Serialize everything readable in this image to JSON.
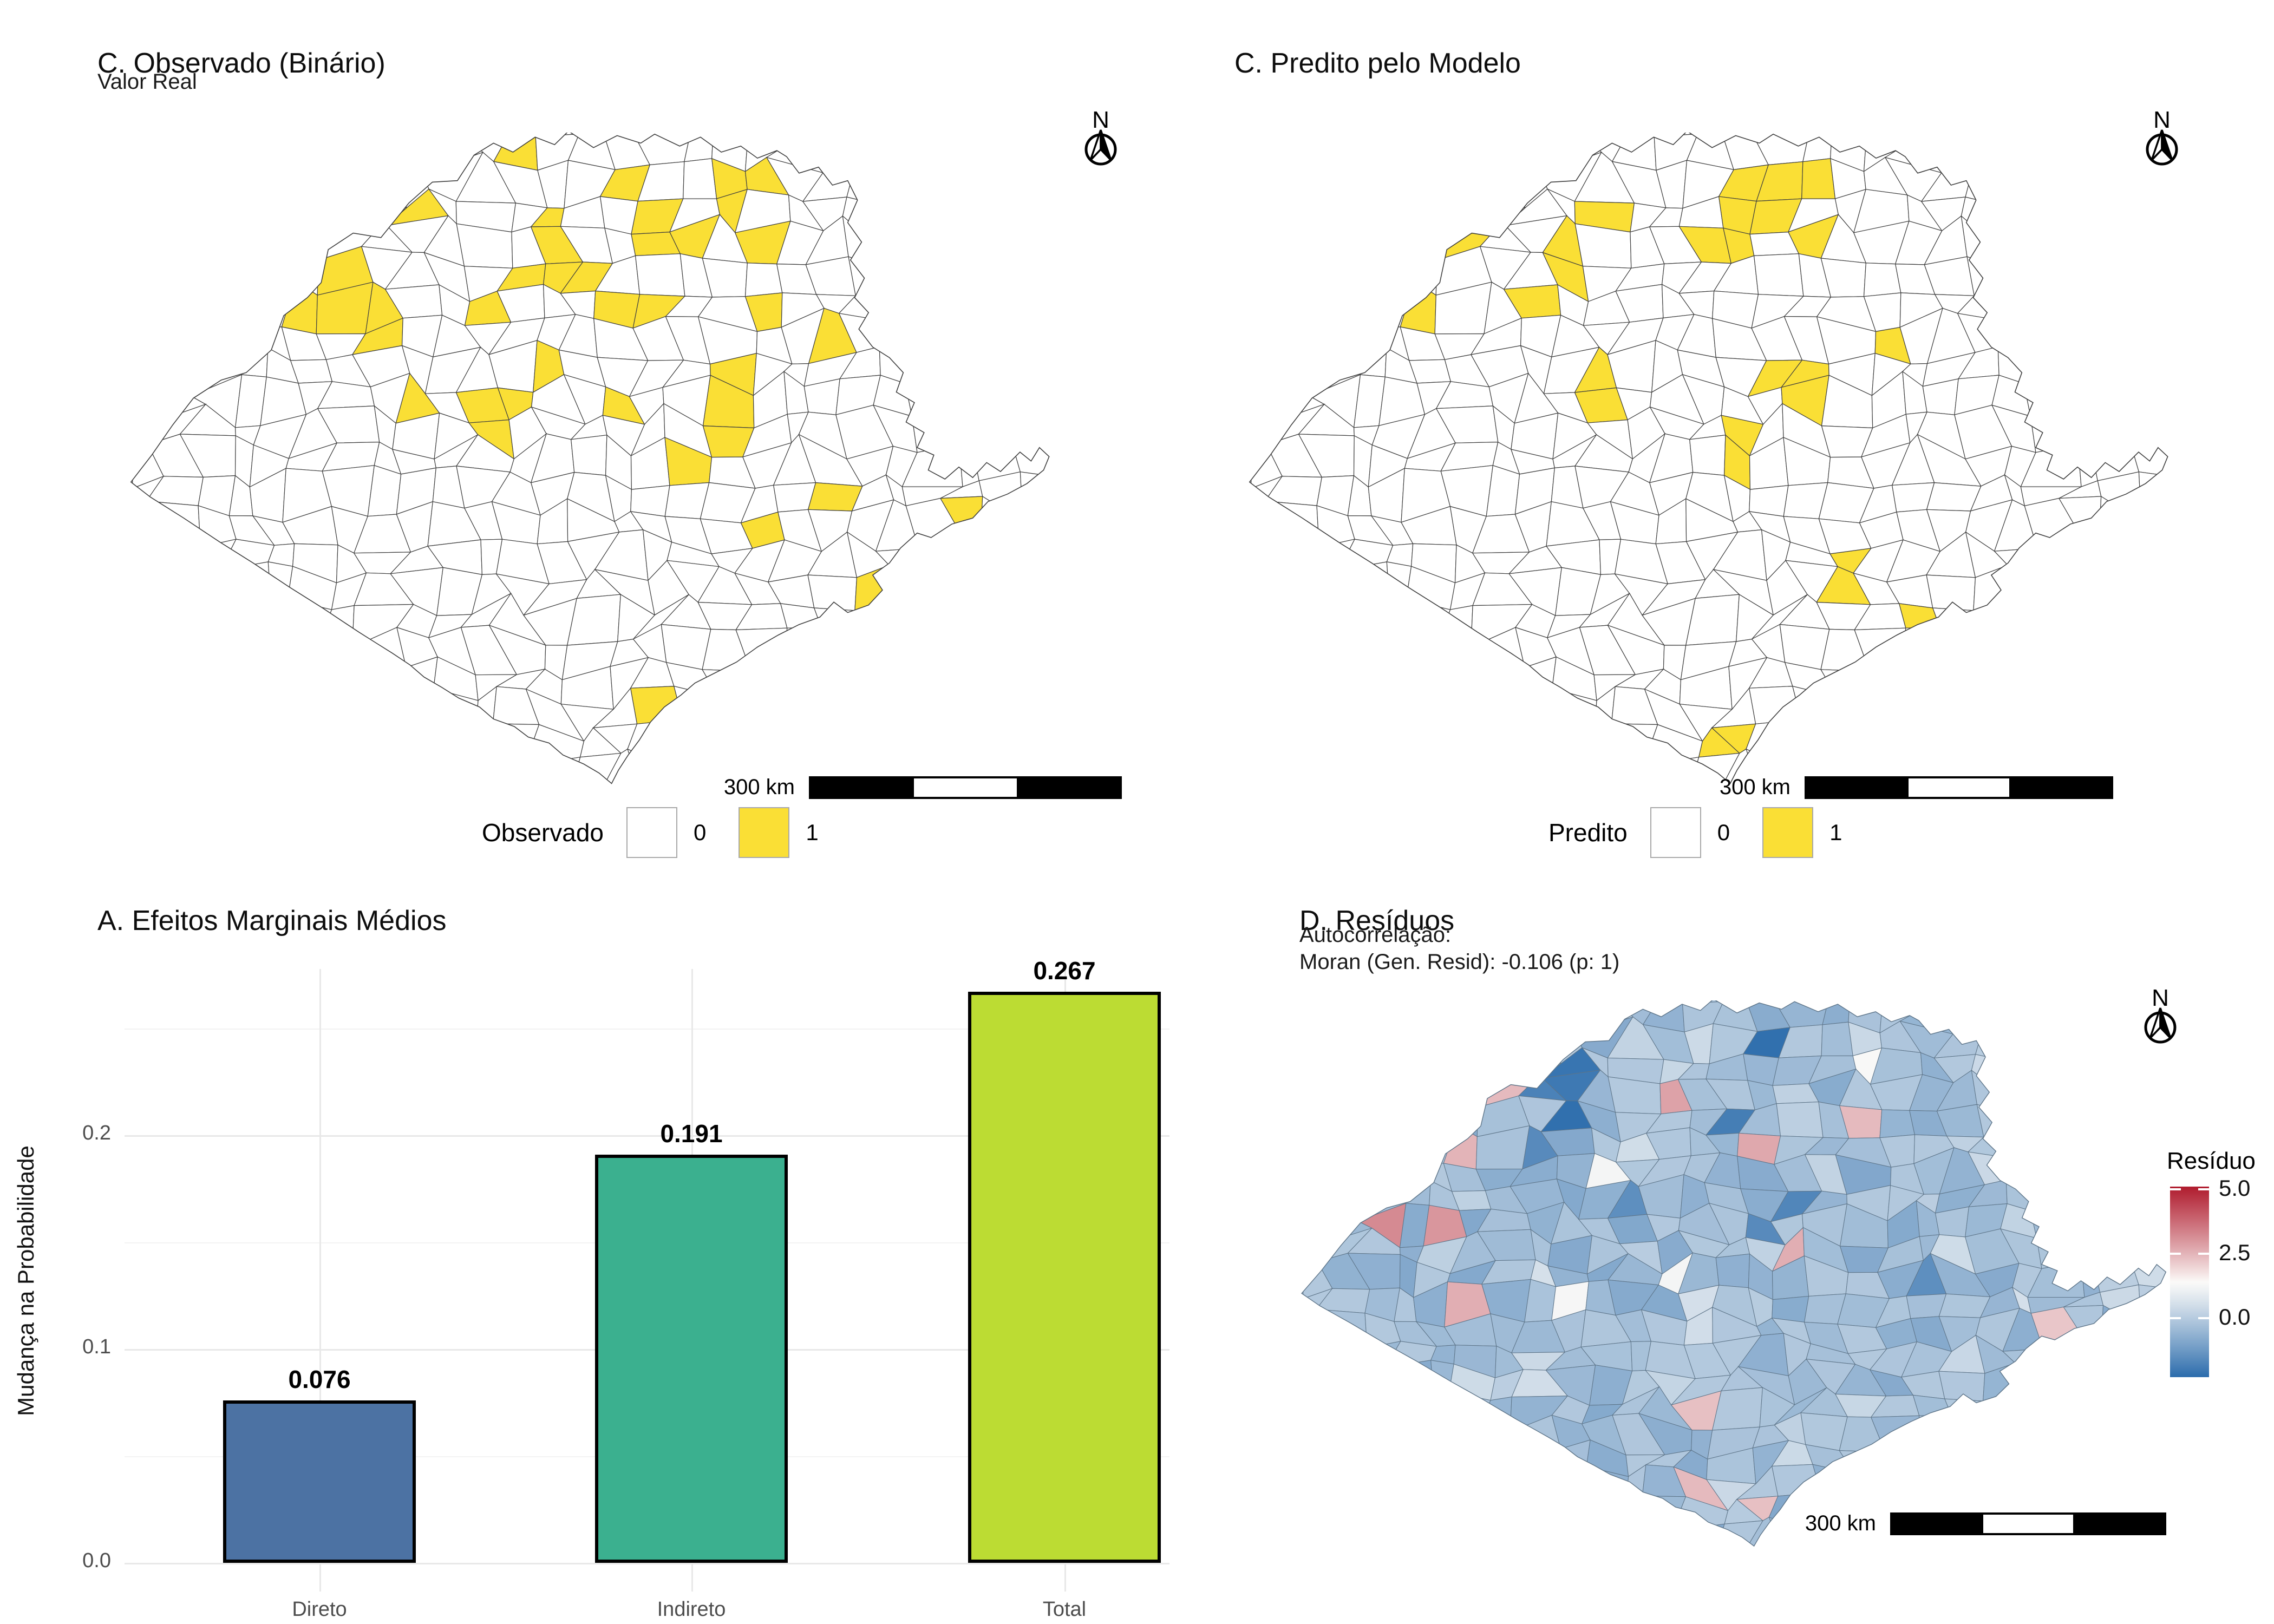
{
  "panels": {
    "observado": {
      "title": "C. Observado (Binário)",
      "subtitle": "Valor Real",
      "north_label": "N",
      "scale_text": "300 km",
      "legend_title": "Observado",
      "legend_items": [
        {
          "label": "0",
          "color": "#FFFFFF"
        },
        {
          "label": "1",
          "color": "#FADF35"
        }
      ],
      "map_type": "choropleth-binary",
      "region": "São Paulo state municipalities",
      "highlights": [
        [
          0.439,
          0.048
        ],
        [
          0.64,
          0.056
        ],
        [
          0.668,
          0.041
        ],
        [
          0.526,
          0.082
        ],
        [
          0.308,
          0.089
        ],
        [
          0.59,
          0.12
        ],
        [
          0.612,
          0.152
        ],
        [
          0.583,
          0.185
        ],
        [
          0.64,
          0.13
        ],
        [
          0.684,
          0.149
        ],
        [
          0.7,
          0.185
        ],
        [
          0.447,
          0.149
        ],
        [
          0.462,
          0.197
        ],
        [
          0.488,
          0.204
        ],
        [
          0.443,
          0.227
        ],
        [
          0.406,
          0.257
        ],
        [
          0.217,
          0.24
        ],
        [
          0.217,
          0.29
        ],
        [
          0.17,
          0.253
        ],
        [
          0.293,
          0.24
        ],
        [
          0.293,
          0.29
        ],
        [
          0.54,
          0.26
        ],
        [
          0.581,
          0.283
        ],
        [
          0.704,
          0.26
        ],
        [
          0.755,
          0.294
        ],
        [
          0.668,
          0.364
        ],
        [
          0.462,
          0.353
        ],
        [
          0.439,
          0.39
        ],
        [
          0.38,
          0.4
        ],
        [
          0.38,
          0.45
        ],
        [
          0.3,
          0.427
        ],
        [
          0.522,
          0.431
        ],
        [
          0.66,
          0.427
        ],
        [
          0.64,
          0.465
        ],
        [
          0.664,
          0.476
        ],
        [
          0.589,
          0.491
        ],
        [
          0.755,
          0.535
        ],
        [
          0.688,
          0.595
        ],
        [
          0.791,
          0.695
        ],
        [
          0.878,
          0.699
        ],
        [
          0.913,
          0.721
        ],
        [
          0.945,
          0.717
        ],
        [
          0.585,
          0.845
        ],
        [
          0.585,
          0.89
        ]
      ]
    },
    "predito": {
      "title": "C. Predito pelo Modelo",
      "north_label": "N",
      "scale_text": "300 km",
      "legend_title": "Predito",
      "legend_items": [
        {
          "label": "0",
          "color": "#FFFFFF"
        },
        {
          "label": "1",
          "color": "#FADF35"
        }
      ],
      "map_type": "choropleth-binary",
      "region": "São Paulo state municipalities",
      "highlights": [
        [
          0.237,
          0.023
        ],
        [
          0.189,
          0.093
        ],
        [
          0.404,
          0.117
        ],
        [
          0.559,
          0.062
        ],
        [
          0.6,
          0.074
        ],
        [
          0.574,
          0.124
        ],
        [
          0.548,
          0.121
        ],
        [
          0.53,
          0.152
        ],
        [
          0.515,
          0.185
        ],
        [
          0.626,
          0.167
        ],
        [
          0.359,
          0.185
        ],
        [
          0.359,
          0.22
        ],
        [
          0.119,
          0.249
        ],
        [
          0.333,
          0.268
        ],
        [
          0.693,
          0.303
        ],
        [
          0.393,
          0.366
        ],
        [
          0.37,
          0.405
        ],
        [
          0.581,
          0.385
        ],
        [
          0.609,
          0.377
        ],
        [
          0.53,
          0.45
        ],
        [
          0.53,
          0.49
        ],
        [
          0.648,
          0.669
        ],
        [
          0.729,
          0.728
        ],
        [
          0.519,
          0.918
        ]
      ]
    },
    "efeitos": {
      "title": "A. Efeitos Marginais Médios"
    },
    "residuos": {
      "title": "D. Resíduos",
      "subtitle_line1": "Autocorrelação:",
      "subtitle_line2": "Moran (Gen. Resid): -0.106 (p: 1)",
      "moran_statistic": "-0.106",
      "moran_p_value": "1",
      "north_label": "N",
      "scale_text": "300 km",
      "legend_title": "Resíduo",
      "legend_ticks": [
        "5.0",
        "2.5",
        "0.0"
      ],
      "legend_tick_values": [
        5.0,
        2.5,
        0.0
      ],
      "colorbar": {
        "top_color": "#B01C2E",
        "white_color": "#FBFAF8",
        "bottom_color": "#2B6CAC",
        "vmax": 5.1,
        "vmin": -2.3,
        "white_value": 1.4
      },
      "map_type": "choropleth-continuous",
      "region": "São Paulo state municipalities",
      "highlights": [
        [
          0.501,
          0.24,
          5.0
        ],
        [
          0.445,
          0.184,
          2.8
        ],
        [
          0.532,
          0.264,
          2.7
        ],
        [
          0.642,
          0.24,
          2.4
        ],
        [
          0.584,
          0.438,
          2.6
        ],
        [
          0.06,
          0.295,
          3.2
        ],
        [
          0.16,
          0.41,
          3.0
        ],
        [
          0.1,
          0.205,
          2.5
        ],
        [
          0.218,
          0.12,
          2.4
        ],
        [
          0.53,
          0.9,
          2.3
        ],
        [
          0.865,
          0.599,
          2.2
        ],
        [
          0.447,
          0.732,
          2.3
        ],
        [
          0.47,
          0.865,
          2.4
        ],
        [
          0.18,
          0.56,
          2.6
        ],
        [
          0.495,
          0.216,
          -1.9
        ],
        [
          0.588,
          0.344,
          -1.7
        ],
        [
          0.543,
          0.419,
          -1.6
        ],
        [
          0.269,
          0.167,
          -1.8
        ],
        [
          0.378,
          0.385,
          -1.5
        ],
        [
          0.311,
          0.103,
          -2.1
        ],
        [
          0.26,
          0.27,
          -1.6
        ],
        [
          0.705,
          0.5,
          -1.5
        ],
        [
          0.54,
          0.05,
          -2.2
        ],
        [
          0.308,
          0.173,
          -2.0
        ],
        [
          0.308,
          0.2,
          -2.2
        ],
        [
          0.36,
          0.3,
          1.2
        ],
        [
          0.66,
          0.1,
          1.3
        ],
        [
          0.3,
          0.56,
          1.25
        ],
        [
          0.42,
          0.48,
          1.2
        ]
      ]
    }
  },
  "map_style": {
    "fill_default": "#FFFFFF",
    "border_binary": "#3F3F3F",
    "border_residual": "#5D7488",
    "highlight_fill": "#FADF35"
  },
  "chart_data": {
    "type": "bar",
    "title": "A. Efeitos Marginais Médios",
    "categories": [
      "Direto",
      "Indireto",
      "Total"
    ],
    "values": [
      0.076,
      0.191,
      0.267
    ],
    "value_labels": [
      "0.076",
      "0.191",
      "0.267"
    ],
    "bar_colors": [
      "#4C72A3",
      "#3BB08F",
      "#BCDC33"
    ],
    "xlabel": "",
    "ylabel": "Mudança na Probabilidade",
    "yticks": [
      "0.0",
      "0.1",
      "0.2"
    ],
    "ytick_values": [
      0.0,
      0.1,
      0.2
    ],
    "ylim": [
      0,
      0.28
    ],
    "grid": true,
    "legend_position": "none"
  }
}
